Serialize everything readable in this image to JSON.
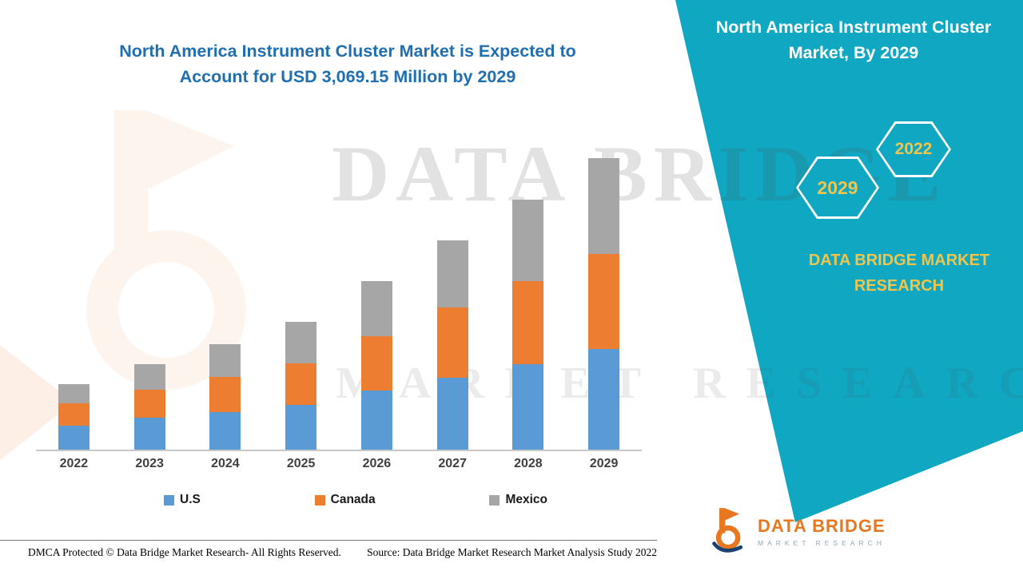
{
  "chart_title": "North America Instrument Cluster Market is Expected to Account for USD 3,069.15 Million by 2029",
  "right_panel": {
    "title": "North America Instrument Cluster Market, By 2029",
    "hexagons": [
      {
        "label": "2029"
      },
      {
        "label": "2022"
      }
    ],
    "brand_text": "DATA BRIDGE MARKET RESEARCH"
  },
  "watermark": {
    "line1": "DATA BRIDGE",
    "line2": "MARKET RESEARCH"
  },
  "chart_data": {
    "type": "bar",
    "stacked": true,
    "unit": "USD Million",
    "title": "North America Instrument Cluster Market is Expected to Account for USD 3,069.15 Million by 2029",
    "categories": [
      "2022",
      "2023",
      "2024",
      "2025",
      "2026",
      "2027",
      "2028",
      "2029"
    ],
    "series": [
      {
        "name": "U.S",
        "color": "#5B9BD5",
        "values": [
          252,
          336,
          395,
          471,
          622,
          757,
          900,
          1060
        ]
      },
      {
        "name": "Canada",
        "color": "#ED7D31",
        "values": [
          235,
          294,
          370,
          437,
          572,
          740,
          875,
          1000
        ]
      },
      {
        "name": "Mexico",
        "color": "#A6A6A6",
        "values": [
          202,
          269,
          345,
          437,
          580,
          706,
          858,
          1009.15
        ]
      }
    ],
    "ylim": [
      0,
      3200
    ],
    "grid": false,
    "legend_position": "bottom",
    "total_2029": 3069.15
  },
  "footer": {
    "dmca": "DMCA Protected © Data Bridge Market Research- All Rights Reserved.",
    "source": "Source: Data Bridge Market Research Market Analysis Study 2022"
  },
  "logo": {
    "name": "DATA BRIDGE",
    "tagline": "MARKET RESEARCH"
  },
  "colors": {
    "panel_teal": "#10A7C2",
    "accent_yellow": "#EFC54B",
    "title_blue": "#1F6FB0",
    "logo_orange": "#E87722"
  }
}
